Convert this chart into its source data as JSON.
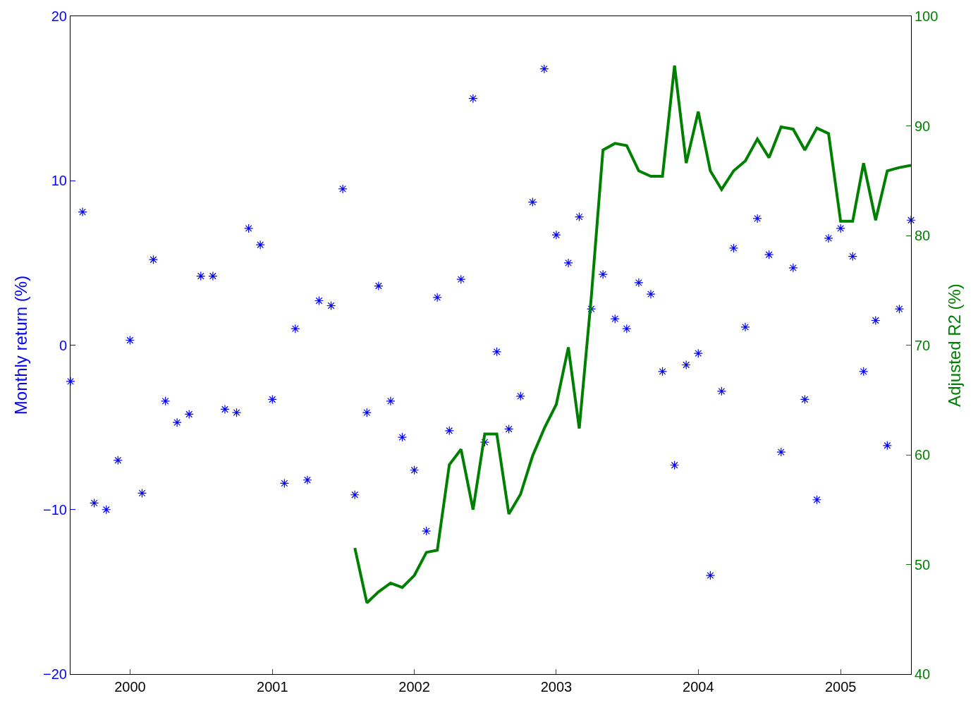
{
  "chart_data": {
    "type": "scatter",
    "ylabel": "Monthly return (%)",
    "y2label": "Adjusted R2 (%)",
    "xlim": [
      "1999-08-01",
      "2005-07-01"
    ],
    "xticks": [
      {
        "value": "2000-01-01",
        "label": "2000"
      },
      {
        "value": "2001-01-01",
        "label": "2001"
      },
      {
        "value": "2002-01-01",
        "label": "2002"
      },
      {
        "value": "2003-01-01",
        "label": "2003"
      },
      {
        "value": "2004-01-01",
        "label": "2004"
      },
      {
        "value": "2005-01-01",
        "label": "2005"
      }
    ],
    "ylim": [
      -20,
      20
    ],
    "yticks": [
      -20,
      -10,
      0,
      10,
      20
    ],
    "y2lim": [
      40,
      100
    ],
    "y2ticks": [
      40,
      50,
      60,
      70,
      80,
      90,
      100
    ],
    "series": [
      {
        "color": "#0000ff",
        "marker": "cross",
        "x": [
          "1999-08",
          "1999-09",
          "1999-10",
          "1999-11",
          "1999-12",
          "2000-01",
          "2000-02",
          "2000-03",
          "2000-04",
          "2000-05",
          "2000-06",
          "2000-07",
          "2000-08",
          "2000-09",
          "2000-10",
          "2000-11",
          "2000-12",
          "2001-01",
          "2001-02",
          "2001-03",
          "2001-04",
          "2001-05",
          "2001-06",
          "2001-07",
          "2001-08",
          "2001-09",
          "2001-10",
          "2001-11",
          "2001-12",
          "2002-01",
          "2002-02",
          "2002-03",
          "2002-04",
          "2002-05",
          "2002-06",
          "2002-07",
          "2002-08",
          "2002-09",
          "2002-10",
          "2002-11",
          "2002-12",
          "2003-01",
          "2003-02",
          "2003-03",
          "2003-04",
          "2003-05",
          "2003-06",
          "2003-07",
          "2003-08",
          "2003-09",
          "2003-10",
          "2003-11",
          "2003-12",
          "2004-01",
          "2004-02",
          "2004-03",
          "2004-04",
          "2004-05",
          "2004-06",
          "2004-07",
          "2004-08",
          "2004-09",
          "2004-10",
          "2004-11",
          "2004-12",
          "2005-01",
          "2005-02",
          "2005-03",
          "2005-04",
          "2005-05",
          "2005-06",
          "2005-07"
        ],
        "values": [
          -2.2,
          8.1,
          -9.6,
          -10.0,
          -7.0,
          0.3,
          -9.0,
          5.2,
          -3.4,
          -4.7,
          -4.2,
          4.2,
          4.2,
          -3.9,
          -4.1,
          7.1,
          6.1,
          -3.3,
          -8.4,
          1.0,
          -8.2,
          2.7,
          2.4,
          9.5,
          -9.1,
          -4.1,
          3.6,
          -3.4,
          -5.6,
          -7.6,
          -11.3,
          2.9,
          -5.2,
          4.0,
          15.0,
          -5.9,
          -0.4,
          -5.1,
          -3.1,
          8.7,
          16.8,
          6.7,
          5.0,
          7.8,
          2.2,
          4.3,
          1.6,
          1.0,
          3.8,
          3.1,
          -1.6,
          -7.3,
          -1.2,
          -0.5,
          -14.0,
          -2.8,
          5.9,
          1.1,
          7.7,
          5.5,
          -6.5,
          4.7,
          -3.3,
          -9.4,
          6.5,
          7.1,
          5.4,
          -1.6,
          1.5,
          -6.1,
          2.2,
          7.6
        ]
      },
      {
        "type": "line",
        "color": "#008000",
        "axis": "y2",
        "x": [
          "2001-08",
          "2001-09",
          "2001-10",
          "2001-11",
          "2001-12",
          "2002-01",
          "2002-02",
          "2002-03",
          "2002-04",
          "2002-05",
          "2002-06",
          "2002-07",
          "2002-08",
          "2002-09",
          "2002-10",
          "2002-11",
          "2002-12",
          "2003-01",
          "2003-02",
          "2003-03",
          "2003-04",
          "2003-05",
          "2003-06",
          "2003-07",
          "2003-08",
          "2003-09",
          "2003-10",
          "2003-11",
          "2003-12",
          "2004-01",
          "2004-02",
          "2004-03",
          "2004-04",
          "2004-05",
          "2004-06",
          "2004-07",
          "2004-08",
          "2004-09",
          "2004-10",
          "2004-11",
          "2004-12",
          "2005-01",
          "2005-02",
          "2005-03",
          "2005-04",
          "2005-05",
          "2005-06",
          "2005-07"
        ],
        "values": [
          51.5,
          46.5,
          47.5,
          48.3,
          47.9,
          49.0,
          51.1,
          51.3,
          59.1,
          60.5,
          55.0,
          61.9,
          61.9,
          54.6,
          56.4,
          59.9,
          62.4,
          64.6,
          69.8,
          62.4,
          74.4,
          87.8,
          88.4,
          88.2,
          85.9,
          85.4,
          85.4,
          95.5,
          86.6,
          91.3,
          85.9,
          84.2,
          85.9,
          86.8,
          88.8,
          87.1,
          89.9,
          89.7,
          87.8,
          89.8,
          89.3,
          81.3,
          81.3,
          86.6,
          81.4,
          85.9,
          86.2,
          86.4
        ]
      }
    ]
  }
}
